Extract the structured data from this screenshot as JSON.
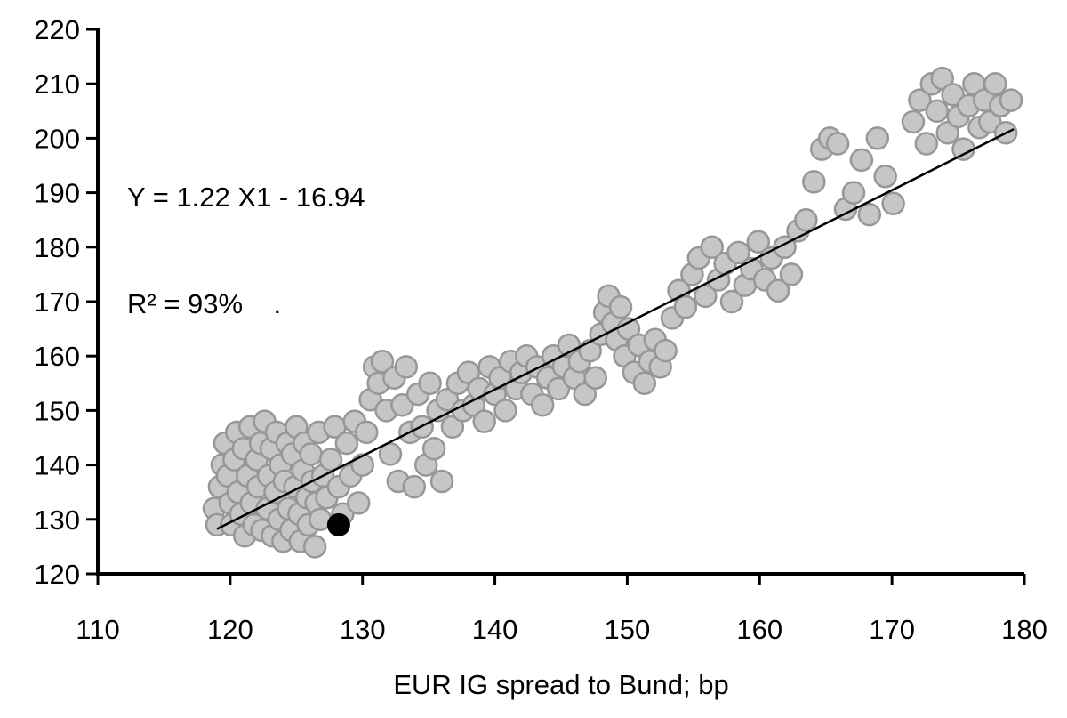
{
  "chart_data": {
    "type": "scatter",
    "title": "",
    "xlabel": "EUR IG spread to Bund; bp",
    "ylabel": "",
    "xlim": [
      110,
      180
    ],
    "ylim": [
      120,
      220
    ],
    "xticks": [
      110,
      120,
      130,
      140,
      150,
      160,
      170,
      180
    ],
    "yticks": [
      120,
      130,
      140,
      150,
      160,
      170,
      180,
      190,
      200,
      210,
      220
    ],
    "grid": false,
    "legend": "none",
    "annotation": {
      "line1": "Y = 1.22 X1 - 16.94",
      "line2": "R² = 93%    ."
    },
    "regression": {
      "slope": 1.22,
      "intercept": -16.94,
      "x_start": 119.0,
      "x_end": 179.2,
      "color": "#000000"
    },
    "series": [
      {
        "name": "observations",
        "color": "#c6c6c6",
        "stroke": "#979797",
        "points": [
          [
            118.8,
            132
          ],
          [
            119.0,
            129
          ],
          [
            119.2,
            136
          ],
          [
            119.4,
            140
          ],
          [
            119.6,
            144
          ],
          [
            119.8,
            138
          ],
          [
            120.0,
            133
          ],
          [
            120.1,
            129
          ],
          [
            120.3,
            141
          ],
          [
            120.5,
            146
          ],
          [
            120.6,
            135
          ],
          [
            120.8,
            131
          ],
          [
            121.0,
            143
          ],
          [
            121.1,
            127
          ],
          [
            121.3,
            138
          ],
          [
            121.5,
            147
          ],
          [
            121.6,
            133
          ],
          [
            121.8,
            129
          ],
          [
            122.0,
            141
          ],
          [
            122.1,
            136
          ],
          [
            122.3,
            144
          ],
          [
            122.4,
            128
          ],
          [
            122.6,
            148
          ],
          [
            122.8,
            132
          ],
          [
            122.9,
            138
          ],
          [
            123.1,
            143
          ],
          [
            123.2,
            127
          ],
          [
            123.4,
            135
          ],
          [
            123.5,
            146
          ],
          [
            123.7,
            130
          ],
          [
            123.8,
            140
          ],
          [
            124.0,
            126
          ],
          [
            124.1,
            137
          ],
          [
            124.3,
            144
          ],
          [
            124.4,
            132
          ],
          [
            124.6,
            128
          ],
          [
            124.7,
            142
          ],
          [
            124.9,
            136
          ],
          [
            125.0,
            147
          ],
          [
            125.2,
            131
          ],
          [
            125.3,
            126
          ],
          [
            125.5,
            139
          ],
          [
            125.6,
            144
          ],
          [
            125.8,
            134
          ],
          [
            125.9,
            129
          ],
          [
            126.1,
            142
          ],
          [
            126.2,
            137
          ],
          [
            126.4,
            125
          ],
          [
            126.5,
            133
          ],
          [
            126.7,
            146
          ],
          [
            126.8,
            130
          ],
          [
            127.0,
            138
          ],
          [
            127.3,
            134
          ],
          [
            127.6,
            141
          ],
          [
            127.9,
            147
          ],
          [
            128.2,
            136
          ],
          [
            128.5,
            131
          ],
          [
            128.8,
            144
          ],
          [
            129.1,
            138
          ],
          [
            129.4,
            148
          ],
          [
            129.7,
            133
          ],
          [
            130.0,
            140
          ],
          [
            130.3,
            146
          ],
          [
            130.6,
            152
          ],
          [
            130.9,
            158
          ],
          [
            131.2,
            155
          ],
          [
            131.5,
            159
          ],
          [
            131.8,
            150
          ],
          [
            132.1,
            142
          ],
          [
            132.4,
            156
          ],
          [
            132.7,
            137
          ],
          [
            133.0,
            151
          ],
          [
            133.3,
            158
          ],
          [
            133.6,
            146
          ],
          [
            133.9,
            136
          ],
          [
            134.2,
            153
          ],
          [
            134.5,
            147
          ],
          [
            134.8,
            140
          ],
          [
            135.1,
            155
          ],
          [
            135.4,
            143
          ],
          [
            135.7,
            150
          ],
          [
            136.0,
            137
          ],
          [
            136.4,
            152
          ],
          [
            136.8,
            147
          ],
          [
            137.2,
            155
          ],
          [
            137.6,
            150
          ],
          [
            138.0,
            157
          ],
          [
            138.4,
            151
          ],
          [
            138.8,
            154
          ],
          [
            139.2,
            148
          ],
          [
            139.6,
            158
          ],
          [
            140.0,
            153
          ],
          [
            140.4,
            156
          ],
          [
            140.8,
            150
          ],
          [
            141.2,
            159
          ],
          [
            141.6,
            154
          ],
          [
            142.0,
            157
          ],
          [
            142.4,
            160
          ],
          [
            142.8,
            153
          ],
          [
            143.2,
            158
          ],
          [
            143.6,
            151
          ],
          [
            144.0,
            156
          ],
          [
            144.4,
            160
          ],
          [
            144.8,
            154
          ],
          [
            145.2,
            158
          ],
          [
            145.6,
            162
          ],
          [
            146.0,
            156
          ],
          [
            146.4,
            159
          ],
          [
            146.8,
            153
          ],
          [
            147.2,
            161
          ],
          [
            147.6,
            156
          ],
          [
            148.0,
            164
          ],
          [
            148.3,
            168
          ],
          [
            148.6,
            171
          ],
          [
            148.9,
            166
          ],
          [
            149.2,
            163
          ],
          [
            149.5,
            169
          ],
          [
            149.8,
            160
          ],
          [
            150.1,
            165
          ],
          [
            150.5,
            157
          ],
          [
            150.9,
            162
          ],
          [
            151.3,
            155
          ],
          [
            151.7,
            159
          ],
          [
            152.1,
            163
          ],
          [
            152.5,
            158
          ],
          [
            152.9,
            161
          ],
          [
            153.4,
            167
          ],
          [
            153.9,
            172
          ],
          [
            154.4,
            169
          ],
          [
            154.9,
            175
          ],
          [
            155.4,
            178
          ],
          [
            155.9,
            171
          ],
          [
            156.4,
            180
          ],
          [
            156.9,
            174
          ],
          [
            157.4,
            177
          ],
          [
            157.9,
            170
          ],
          [
            158.4,
            179
          ],
          [
            158.9,
            173
          ],
          [
            159.4,
            176
          ],
          [
            159.9,
            181
          ],
          [
            160.4,
            174
          ],
          [
            160.9,
            178
          ],
          [
            161.4,
            172
          ],
          [
            161.9,
            180
          ],
          [
            162.4,
            175
          ],
          [
            162.9,
            183
          ],
          [
            163.5,
            185
          ],
          [
            164.1,
            192
          ],
          [
            164.7,
            198
          ],
          [
            165.3,
            200
          ],
          [
            165.9,
            199
          ],
          [
            166.5,
            187
          ],
          [
            167.1,
            190
          ],
          [
            167.7,
            196
          ],
          [
            168.3,
            186
          ],
          [
            168.9,
            200
          ],
          [
            169.5,
            193
          ],
          [
            170.1,
            188
          ],
          [
            171.6,
            203
          ],
          [
            172.1,
            207
          ],
          [
            172.6,
            199
          ],
          [
            173.0,
            210
          ],
          [
            173.4,
            205
          ],
          [
            173.8,
            211
          ],
          [
            174.2,
            201
          ],
          [
            174.6,
            208
          ],
          [
            175.0,
            204
          ],
          [
            175.4,
            198
          ],
          [
            175.8,
            206
          ],
          [
            176.2,
            210
          ],
          [
            176.6,
            202
          ],
          [
            177.0,
            207
          ],
          [
            177.4,
            203
          ],
          [
            177.8,
            210
          ],
          [
            178.2,
            206
          ],
          [
            178.6,
            201
          ],
          [
            179.0,
            207
          ]
        ]
      },
      {
        "name": "latest-point",
        "color": "#000000",
        "points": [
          [
            128.2,
            129.0
          ]
        ]
      }
    ]
  }
}
